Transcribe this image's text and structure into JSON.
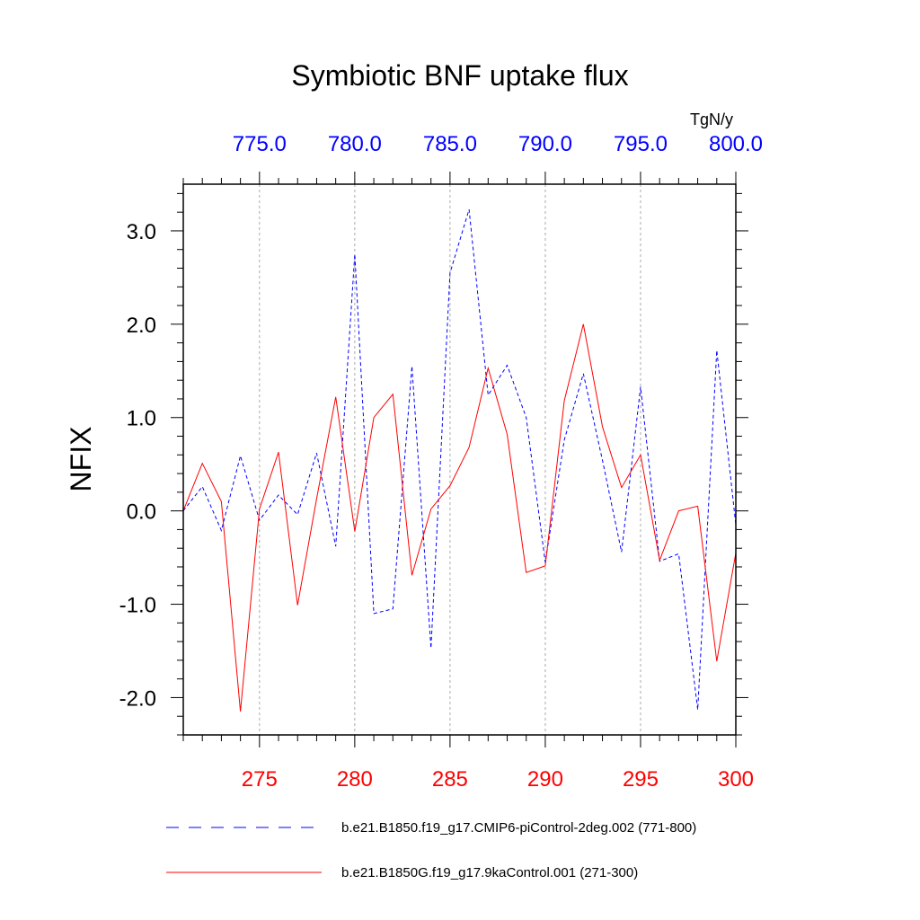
{
  "chart_data": {
    "type": "line",
    "title": "Symbiotic BNF uptake flux",
    "ylabel": "NFIX",
    "units": "TgN/y",
    "ylim": [
      -2.4,
      3.5
    ],
    "yticks": [
      -2.0,
      -1.0,
      0.0,
      1.0,
      2.0,
      3.0
    ],
    "ytick_labels": [
      "-2.0",
      "-1.0",
      "0.0",
      "1.0",
      "2.0",
      "3.0"
    ],
    "top_axis": {
      "range": [
        771,
        800
      ],
      "ticks": [
        775,
        780,
        785,
        790,
        795,
        800
      ],
      "labels": [
        "775.0",
        "780.0",
        "785.0",
        "790.0",
        "795.0",
        "800.0"
      ],
      "color": "#0000ff"
    },
    "bottom_axis": {
      "range": [
        271,
        300
      ],
      "ticks": [
        275,
        280,
        285,
        290,
        295,
        300
      ],
      "labels": [
        "275",
        "280",
        "285",
        "290",
        "295",
        "300"
      ],
      "color": "#ff0000"
    },
    "grid": "vertical dashed at major ticks",
    "series": [
      {
        "name": "b.e21.B1850.f19_g17.CMIP6-piControl-2deg.002 (771-800)",
        "axis": "top",
        "color": "#0000ff",
        "style": "dashed",
        "x": [
          771,
          772,
          773,
          774,
          775,
          776,
          777,
          778,
          779,
          780,
          781,
          782,
          783,
          784,
          785,
          786,
          787,
          788,
          789,
          790,
          791,
          792,
          793,
          794,
          795,
          796,
          797,
          798,
          799,
          800
        ],
        "values": [
          0.0,
          0.26,
          -0.21,
          0.59,
          -0.1,
          0.17,
          -0.04,
          0.62,
          -0.38,
          2.75,
          -1.1,
          -1.05,
          1.55,
          -1.47,
          2.55,
          3.23,
          1.24,
          1.56,
          1.0,
          -0.55,
          0.76,
          1.47,
          0.54,
          -0.44,
          1.33,
          -0.54,
          -0.46,
          -2.13,
          1.72,
          -0.15
        ]
      },
      {
        "name": "b.e21.B1850G.f19_g17.9kaControl.001 (271-300)",
        "axis": "bottom",
        "color": "#ff0000",
        "style": "solid",
        "x": [
          271,
          272,
          273,
          274,
          275,
          276,
          277,
          278,
          279,
          280,
          281,
          282,
          283,
          284,
          285,
          286,
          287,
          288,
          289,
          290,
          291,
          292,
          293,
          294,
          295,
          296,
          297,
          298,
          299,
          300
        ],
        "values": [
          0.0,
          0.51,
          0.1,
          -2.15,
          0.02,
          0.63,
          -1.01,
          0.13,
          1.22,
          -0.22,
          1.0,
          1.25,
          -0.69,
          0.02,
          0.27,
          0.68,
          1.53,
          0.82,
          -0.66,
          -0.59,
          1.18,
          2.0,
          0.9,
          0.25,
          0.6,
          -0.53,
          0.0,
          0.05,
          -1.61,
          -0.45
        ]
      }
    ],
    "legend": {
      "placement": "bottom",
      "entries": [
        "b.e21.B1850.f19_g17.CMIP6-piControl-2deg.002 (771-800)",
        "b.e21.B1850G.f19_g17.9kaControl.001 (271-300)"
      ]
    }
  }
}
